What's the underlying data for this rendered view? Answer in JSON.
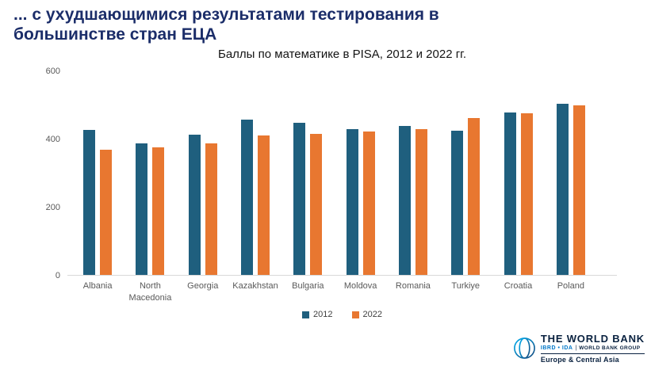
{
  "slide": {
    "title_line1": "... с ухудшающимися результатами тестирования в",
    "title_line2": "большинстве стран ЕЦА",
    "subtitle": "Баллы по математике в PISA, 2012 и 2022 гг."
  },
  "chart_data": {
    "type": "bar",
    "title": "Баллы по математике в PISA, 2012 и 2022 гг.",
    "categories": [
      "Albania",
      "North Macedonia",
      "Georgia",
      "Kazakhstan",
      "Bulgaria",
      "Moldova",
      "Romania",
      "Turkiye",
      "Croatia",
      "Poland"
    ],
    "series": [
      {
        "name": "2012",
        "color": "#1F5F7E",
        "values": [
          426,
          385,
          411,
          455,
          447,
          428,
          437,
          424,
          476,
          503
        ]
      },
      {
        "name": "2022",
        "color": "#E87730",
        "values": [
          368,
          375,
          386,
          410,
          414,
          421,
          428,
          460,
          475,
          497
        ]
      }
    ],
    "xlabel": "",
    "ylabel": "",
    "ylim": [
      0,
      600
    ],
    "yticks": [
      0,
      200,
      400,
      600
    ],
    "grid": false,
    "legend_position": "bottom"
  },
  "footer_logo": {
    "org": "THE WORLD BANK",
    "membership": "IBRD • IDA",
    "separator": "|",
    "group": "WORLD BANK GROUP",
    "region": "Europe & Central Asia"
  },
  "colors": {
    "title_navy": "#1B2D69",
    "bar_2012": "#1F5F7E",
    "bar_2022": "#E87730",
    "axis_text": "#595959",
    "wb_navy": "#0A2240",
    "wb_blue": "#0077C8"
  }
}
